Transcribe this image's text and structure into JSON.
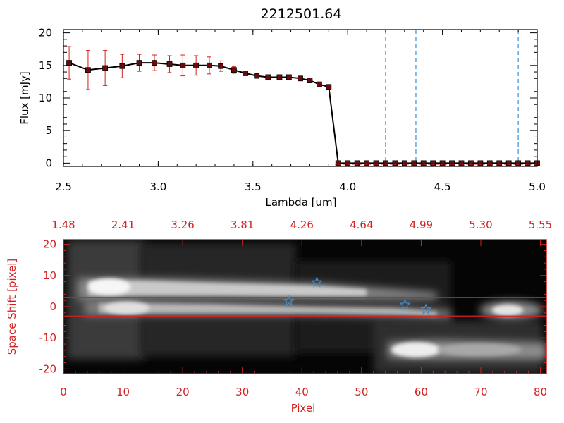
{
  "chart_data": [
    {
      "type": "line",
      "title": "2212501.64",
      "xlabel": "Lambda [um]",
      "ylabel": "Flux [mJy]",
      "xlim": [
        2.5,
        5.0
      ],
      "ylim": [
        -0.5,
        20.5
      ],
      "x_ticks": [
        "2.5",
        "3.0",
        "3.5",
        "4.0",
        "4.5",
        "5.0"
      ],
      "y_ticks": [
        "0",
        "5",
        "10",
        "15",
        "20"
      ],
      "series": [
        {
          "x": [
            2.53,
            2.63,
            2.72,
            2.81,
            2.9,
            2.98,
            3.06,
            3.13,
            3.2,
            3.27,
            3.33,
            3.4,
            3.46,
            3.52,
            3.58,
            3.64,
            3.69,
            3.75,
            3.8,
            3.85,
            3.9,
            3.95,
            4.0,
            4.05,
            4.1,
            4.15,
            4.2,
            4.25,
            4.3,
            4.35,
            4.4,
            4.45,
            4.5,
            4.55,
            4.6,
            4.65,
            4.7,
            4.75,
            4.8,
            4.85,
            4.9,
            4.95,
            5.0
          ],
          "y": [
            15.4,
            14.3,
            14.6,
            14.9,
            15.4,
            15.4,
            15.2,
            15.0,
            15.0,
            15.0,
            14.9,
            14.3,
            13.8,
            13.4,
            13.2,
            13.2,
            13.2,
            13.0,
            12.7,
            12.1,
            11.7,
            0,
            0,
            0,
            0,
            0,
            0,
            0,
            0,
            0,
            0,
            0,
            0,
            0,
            0,
            0,
            0,
            0,
            0,
            0,
            0,
            0,
            0
          ],
          "yerr": [
            2.5,
            3.0,
            2.7,
            1.8,
            1.3,
            1.2,
            1.3,
            1.6,
            1.5,
            1.3,
            0.8,
            0.5,
            0.3,
            0.2,
            0.2,
            0.2,
            0.2,
            0.2,
            0.2,
            0.2,
            0.2,
            0,
            0,
            0,
            0,
            0,
            0,
            0,
            0,
            0,
            0,
            0,
            0,
            0,
            0,
            0,
            0,
            0,
            0,
            0,
            0,
            0,
            0
          ]
        }
      ],
      "vertical_lines": [
        4.2,
        4.36,
        4.9
      ],
      "colors": {
        "line": "#000000",
        "marker": "#6b0a0a",
        "errorbar": "#d42020",
        "vline": "#3a8fd6",
        "axes": "#000000"
      }
    },
    {
      "type": "heatmap",
      "xlabel": "Pixel",
      "ylabel": "Space Shift [pixel]",
      "xlim": [
        0,
        81
      ],
      "ylim": [
        -21.5,
        21.5
      ],
      "x_ticks": [
        "0",
        "10",
        "20",
        "30",
        "40",
        "50",
        "60",
        "70",
        "80"
      ],
      "y_ticks": [
        "-20",
        "-10",
        "0",
        "10",
        "20"
      ],
      "top_ticks": [
        "1.48",
        "2.41",
        "3.26",
        "3.81",
        "4.26",
        "4.64",
        "4.99",
        "5.30",
        "5.55"
      ],
      "extraction_band": [
        -3,
        3
      ],
      "stars": [
        {
          "x": 37.8,
          "y": 1.8
        },
        {
          "x": 42.5,
          "y": 7.8
        },
        {
          "x": 57.3,
          "y": 0.6
        },
        {
          "x": 60.8,
          "y": -0.9
        }
      ],
      "colors": {
        "axes": "#d42020",
        "band": "#d42020",
        "star": "#3a8fd6"
      }
    }
  ]
}
